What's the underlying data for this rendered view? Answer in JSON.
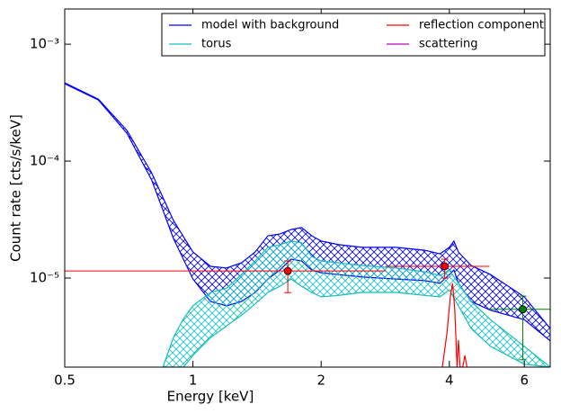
{
  "chart_data": {
    "type": "line",
    "xlabel": "Energy [keV]",
    "ylabel": "Count rate [cts/s/keV]",
    "xscale": "log",
    "yscale": "log",
    "xlim": [
      0.5,
      6.9
    ],
    "ylim": [
      1.73e-06,
      0.002
    ],
    "xticks": [
      0.5,
      1,
      2,
      4,
      6
    ],
    "yticks": [
      {
        "value": 0.001,
        "label": "10⁻³"
      },
      {
        "value": 0.0001,
        "label": "10⁻⁴"
      },
      {
        "value": 1e-05,
        "label": "10⁻⁵"
      }
    ],
    "legend": "upper right",
    "series": [
      {
        "name": "model with background",
        "color": "#0000ff",
        "kind": "band",
        "x": [
          0.5,
          0.6,
          0.7,
          0.8,
          0.9,
          1.0,
          1.1,
          1.2,
          1.3,
          1.4,
          1.5,
          1.6,
          1.7,
          1.8,
          1.9,
          2.0,
          2.2,
          2.5,
          3.0,
          3.5,
          3.8,
          4.0,
          4.1,
          4.2,
          4.5,
          5.0,
          6.0,
          6.9
        ],
        "upper": [
          0.000467,
          0.000339,
          0.000183,
          7.94e-05,
          3.11e-05,
          1.67e-05,
          1.26e-05,
          1.22e-05,
          1.35e-05,
          1.67e-05,
          2.3e-05,
          2.38e-05,
          2.6e-05,
          2.7e-05,
          2.3e-05,
          2.07e-05,
          1.93e-05,
          1.83e-05,
          1.83e-05,
          1.73e-05,
          1.61e-05,
          1.83e-05,
          2.07e-05,
          1.67e-05,
          1.28e-05,
          1.07e-05,
          6.9e-06,
          3.7e-06
        ],
        "lower": [
          0.000459,
          0.000333,
          0.000173,
          6.89e-05,
          2.18e-05,
          9.8e-06,
          6.3e-06,
          5.78e-06,
          6.3e-06,
          7.53e-06,
          9.8e-06,
          1.17e-05,
          1.45e-05,
          1.4e-05,
          1.17e-05,
          1.11e-05,
          1.07e-05,
          1.02e-05,
          9.8e-06,
          9.5e-06,
          9e-06,
          1.07e-05,
          1.17e-05,
          9e-06,
          6.3e-06,
          5.3e-06,
          4.4e-06,
          2.9e-06
        ]
      },
      {
        "name": "torus",
        "color": "#17bebb",
        "kind": "band",
        "x": [
          0.85,
          0.9,
          0.95,
          1.0,
          1.1,
          1.2,
          1.3,
          1.4,
          1.5,
          1.6,
          1.7,
          1.8,
          1.9,
          2.0,
          2.2,
          2.5,
          3.0,
          3.5,
          3.8,
          4.0,
          4.2,
          4.5,
          5.0,
          6.0,
          6.9
        ],
        "upper": [
          1.73e-06,
          3.1e-06,
          4.5e-06,
          5.78e-06,
          7.53e-06,
          8.2e-06,
          1.07e-05,
          1.4e-05,
          1.83e-05,
          1.93e-05,
          2.07e-05,
          2e-05,
          1.53e-05,
          1.4e-05,
          1.35e-05,
          1.28e-05,
          1.22e-05,
          1.13e-05,
          1.05e-05,
          1.17e-05,
          9e-06,
          6.3e-06,
          4.4e-06,
          2.6e-06,
          1.73e-06
        ],
        "lower": [
          1.73e-06,
          1.73e-06,
          1.73e-06,
          2.18e-06,
          3.1e-06,
          3.9e-06,
          4.8e-06,
          6e-06,
          7.53e-06,
          8.5e-06,
          9.8e-06,
          8.5e-06,
          7.53e-06,
          6.9e-06,
          7.1e-06,
          7.53e-06,
          7.53e-06,
          7.1e-06,
          6.9e-06,
          7.9e-06,
          5.78e-06,
          3.7e-06,
          2.6e-06,
          1.83e-06,
          1.73e-06
        ]
      },
      {
        "name": "reflection component",
        "color": "#ff0000",
        "kind": "line",
        "x": [
          3.85,
          3.95,
          4.02,
          4.07,
          4.12,
          4.17,
          4.2,
          4.24,
          4.3,
          4.35,
          4.4
        ],
        "values": [
          1.73e-06,
          3.4e-06,
          6.9e-06,
          9e-06,
          5.3e-06,
          1.73e-06,
          2.95e-06,
          1.73e-06,
          1.73e-06,
          2.18e-06,
          1.73e-06
        ]
      },
      {
        "name": "scattering",
        "color": "#bf00bf",
        "kind": "line"
      }
    ],
    "points": [
      {
        "color": "#ff0000",
        "x": [
          1.67,
          3.9
        ],
        "values": [
          1.15e-05,
          1.26e-05
        ],
        "xlow": [
          0.5,
          2.83
        ],
        "xhigh": [
          2.83,
          4.97
        ],
        "ylow": [
          7.5e-06,
          1e-05
        ],
        "yhigh": [
          1.4e-05,
          1.45e-05
        ]
      },
      {
        "color": "#008000",
        "x": [
          5.95
        ],
        "values": [
          5.4e-06
        ],
        "xlow": [
          4.97
        ],
        "xhigh": [
          6.9
        ],
        "ylow": [
          2e-06
        ],
        "yhigh": [
          7e-06
        ]
      }
    ]
  }
}
